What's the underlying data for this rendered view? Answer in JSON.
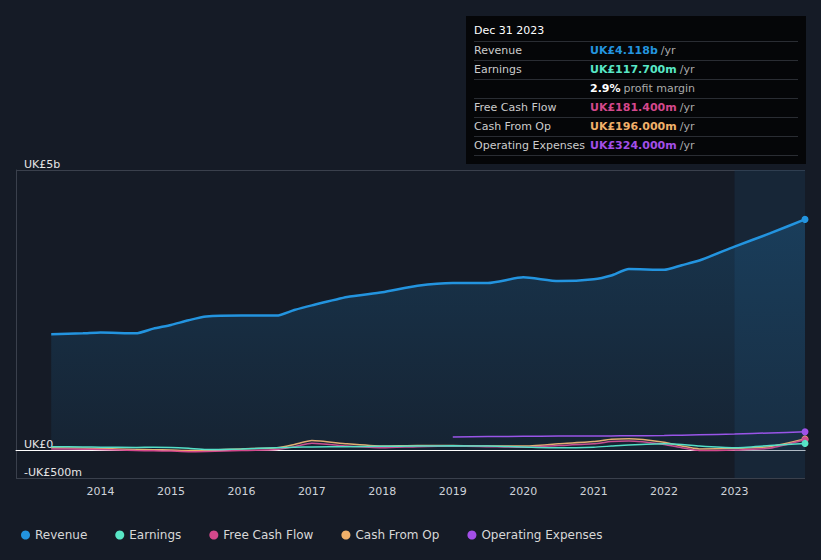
{
  "chart_data": {
    "type": "line",
    "x": [
      2013.3,
      2013.75,
      2014,
      2014.5,
      2014.75,
      2015,
      2015.25,
      2015.5,
      2016,
      2016.5,
      2016.75,
      2017,
      2017.5,
      2018,
      2018.5,
      2019,
      2019.5,
      2020,
      2020.5,
      2021,
      2021.25,
      2021.5,
      2022,
      2022.25,
      2022.5,
      2023,
      2023.5,
      2024
    ],
    "series": [
      {
        "name": "Revenue",
        "color": "#2394df",
        "values": [
          2067,
          2083,
          2100,
          2083,
          2167,
          2233,
          2317,
          2383,
          2400,
          2400,
          2500,
          2583,
          2733,
          2817,
          2933,
          2983,
          2983,
          3083,
          3017,
          3050,
          3117,
          3233,
          3217,
          3300,
          3383,
          3633,
          3867,
          4118
        ]
      },
      {
        "name": "Earnings",
        "color": "#58e6c6",
        "values": [
          60,
          55,
          50,
          45,
          50,
          45,
          30,
          10,
          20,
          40,
          50,
          55,
          60,
          65,
          70,
          75,
          70,
          55,
          40,
          50,
          70,
          90,
          110,
          100,
          70,
          40,
          80,
          117.7
        ]
      },
      {
        "name": "Free Cash Flow",
        "color": "#d4488c",
        "values": [
          20,
          15,
          10,
          -10,
          -15,
          -20,
          -30,
          -25,
          -10,
          10,
          60,
          120,
          70,
          40,
          60,
          70,
          60,
          50,
          80,
          110,
          150,
          160,
          100,
          40,
          -10,
          0,
          30,
          181.4
        ]
      },
      {
        "name": "Cash From Op",
        "color": "#f0b06a",
        "values": [
          40,
          35,
          30,
          10,
          5,
          0,
          -10,
          -5,
          20,
          40,
          100,
          170,
          110,
          70,
          80,
          80,
          70,
          70,
          110,
          150,
          190,
          200,
          140,
          70,
          20,
          30,
          60,
          196
        ]
      },
      {
        "name": "Operating Expenses",
        "color": "#a34fe8",
        "values": [
          null,
          null,
          null,
          null,
          null,
          null,
          null,
          null,
          null,
          null,
          null,
          null,
          null,
          null,
          null,
          233,
          240,
          245,
          248,
          250,
          252,
          255,
          258,
          265,
          272,
          285,
          305,
          324
        ]
      }
    ],
    "xlim": [
      2012.8,
      2024.0
    ],
    "xticks": [
      2014,
      2015,
      2016,
      2017,
      2018,
      2019,
      2020,
      2021,
      2022,
      2023
    ],
    "ylim": [
      -500,
      5000
    ],
    "yticks": [
      {
        "value": -500,
        "label": "-UK£500m"
      },
      {
        "value": 0,
        "label": "UK£0"
      },
      {
        "value": 5000,
        "label": "UK£5b"
      }
    ],
    "grid": true,
    "legend": "bottom",
    "tooltip": {
      "title": "Dec 31 2023",
      "rows": [
        {
          "label": "Revenue",
          "value": "UK£4.118b",
          "unit": "/yr"
        },
        {
          "label": "Earnings",
          "value": "UK£117.700m",
          "unit": "/yr"
        },
        {
          "value": "2.9%",
          "unit": "profit margin"
        },
        {
          "label": "Free Cash Flow",
          "value": "UK£181.400m",
          "unit": "/yr"
        },
        {
          "label": "Cash From Op",
          "value": "UK£196.000m",
          "unit": "/yr"
        },
        {
          "label": "Operating Expenses",
          "value": "UK£324.000m",
          "unit": "/yr"
        }
      ]
    }
  }
}
